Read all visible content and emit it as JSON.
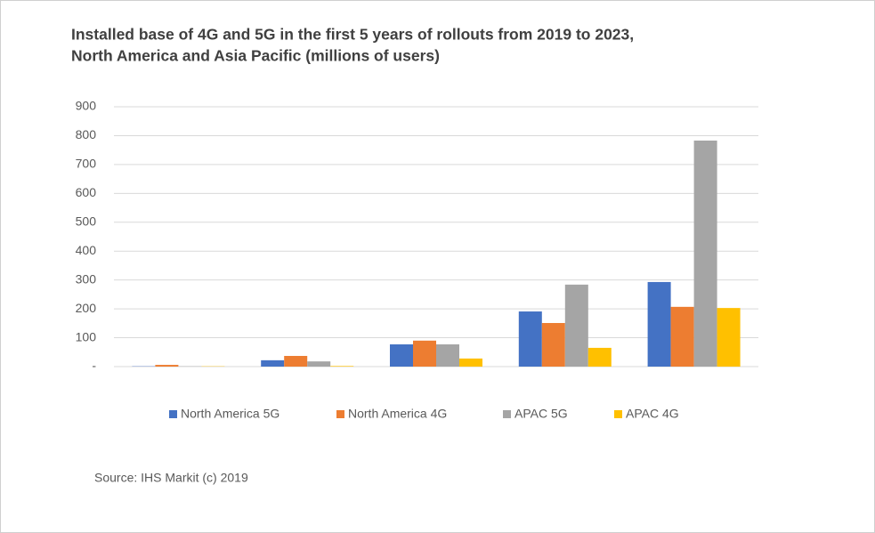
{
  "chart_data": {
    "type": "bar",
    "title": [
      "Installed base of 4G and 5G in the first 5 years of rollouts from 2019 to 2023,",
      "North America and Asia Pacific (millions of users)"
    ],
    "source": "Source: IHS Markit (c) 2019",
    "categories": [
      null,
      null,
      null,
      null,
      null
    ],
    "series": [
      {
        "name": "North America 5G",
        "color": "#4472c4",
        "values": [
          1,
          22,
          77,
          191,
          293
        ]
      },
      {
        "name": "North America 4G",
        "color": "#ed7d31",
        "values": [
          6,
          37,
          90,
          151,
          207
        ]
      },
      {
        "name": "APAC 5G",
        "color": "#a5a5a5",
        "values": [
          1,
          18,
          77,
          284,
          783
        ]
      },
      {
        "name": "APAC 4G",
        "color": "#ffc000",
        "values": [
          1,
          2,
          28,
          65,
          203
        ]
      }
    ],
    "ylim": [
      0,
      900
    ],
    "yticks": [
      {
        "value": 0,
        "label": "-"
      },
      100,
      200,
      300,
      400,
      500,
      600,
      700,
      800,
      900
    ],
    "grid": true,
    "legend": "bottom"
  }
}
